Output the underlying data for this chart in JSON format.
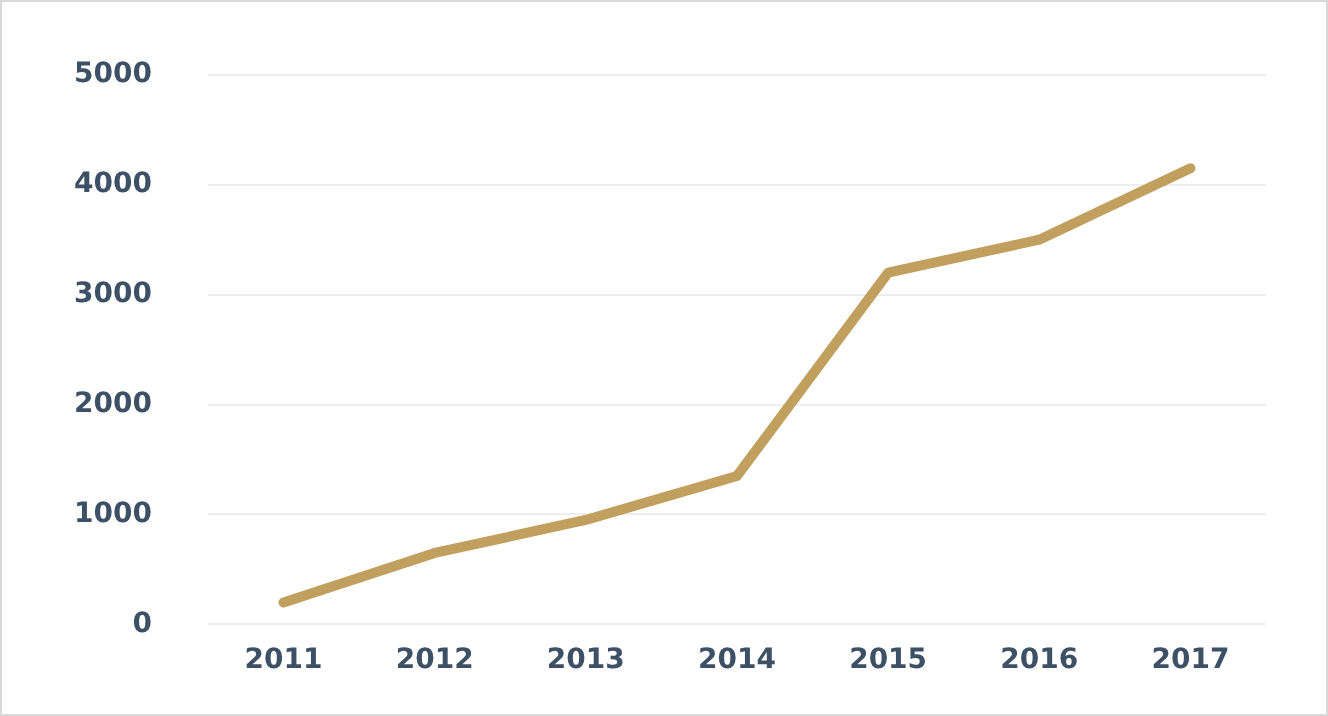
{
  "chart_data": {
    "type": "line",
    "categories": [
      "2011",
      "2012",
      "2013",
      "2014",
      "2015",
      "2016",
      "2017"
    ],
    "series": [
      {
        "color": "#c19f5e",
        "values": [
          200,
          650,
          950,
          1350,
          3200,
          3500,
          4150
        ]
      }
    ],
    "ylim": [
      0,
      5000
    ],
    "yticks": [
      0,
      1000,
      2000,
      3000,
      4000,
      5000
    ],
    "grid": "y",
    "legend": false,
    "marker": "none",
    "line_style": "solid"
  }
}
